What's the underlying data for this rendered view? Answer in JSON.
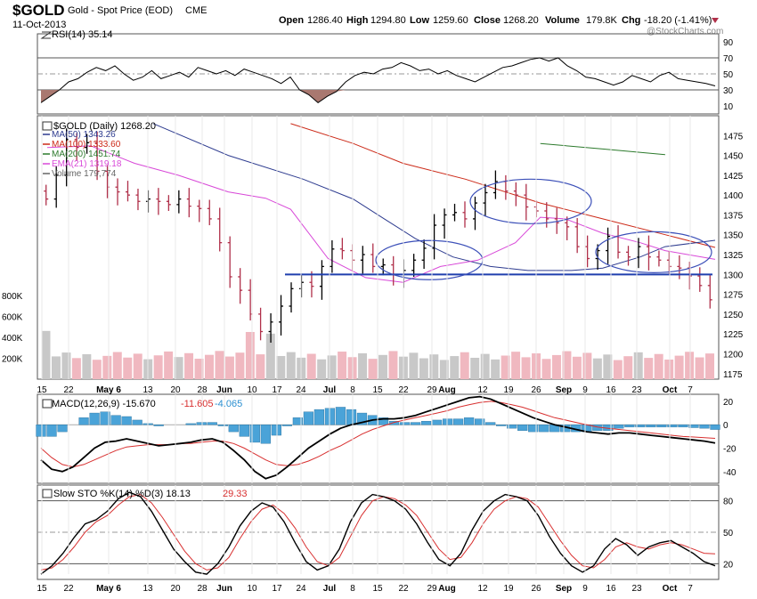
{
  "header": {
    "symbol": "$GOLD",
    "description": "Gold - Spot Price (EOD)",
    "exchange": "CME",
    "date": "11-Oct-2013",
    "open_label": "Open",
    "open": "1286.40",
    "high_label": "High",
    "high": "1294.80",
    "low_label": "Low",
    "low": "1259.60",
    "close_label": "Close",
    "close": "1268.20",
    "volume_label": "Volume",
    "volume": "179.8K",
    "chg_label": "Chg",
    "chg": "-18.20 (-1.41%)",
    "watermark": "@StockCharts.com"
  },
  "colors": {
    "price_bar": "#000000",
    "down_bar": "#b0304a",
    "ma50": "#2d3b8f",
    "ma100": "#cc2a18",
    "ma200": "#2c7a2c",
    "ema21": "#d848d8",
    "ellipse": "#3b4fb8",
    "support": "#1f3fae",
    "macd_hist": "#4aa3d8",
    "signal": "#d83030",
    "vol_up": "#c8c8c8",
    "vol_down": "#f0b8c0"
  },
  "chart_data": [
    {
      "type": "line",
      "panel": "RSI",
      "label": "RSI(14) 35.14",
      "ylim": [
        0,
        100
      ],
      "yticks": [
        10,
        30,
        50,
        70,
        90
      ],
      "guides": [
        30,
        50,
        70
      ],
      "values": [
        14,
        22,
        30,
        40,
        44,
        52,
        58,
        54,
        60,
        50,
        42,
        46,
        54,
        44,
        48,
        52,
        46,
        58,
        54,
        50,
        54,
        48,
        56,
        52,
        48,
        44,
        38,
        46,
        30,
        24,
        14,
        22,
        28,
        40,
        48,
        52,
        50,
        56,
        58,
        64,
        60,
        54,
        56,
        50,
        54,
        48,
        44,
        40,
        46,
        52,
        58,
        60,
        64,
        68,
        70,
        66,
        70,
        60,
        54,
        46,
        44,
        40,
        36,
        40,
        48,
        44,
        40,
        48,
        52,
        44,
        42,
        40,
        38,
        35
      ]
    },
    {
      "type": "ohlc",
      "panel": "Price",
      "label": "$GOLD (Daily) 1268.20",
      "ylim": [
        1168,
        1500
      ],
      "yticks": [
        1175,
        1200,
        1225,
        1250,
        1275,
        1300,
        1325,
        1350,
        1375,
        1400,
        1425,
        1450,
        1475
      ],
      "x_labels": [
        "15",
        "22",
        "May 6",
        "13",
        "20",
        "28",
        "Jun",
        "10",
        "17",
        "24",
        "Jul",
        "8",
        "15",
        "22",
        "29",
        "Aug",
        "12",
        "19",
        "26",
        "Sep",
        "9",
        "16",
        "23",
        "Oct",
        "7"
      ],
      "closes": [
        1395,
        1425,
        1470,
        1460,
        1466,
        1430,
        1410,
        1404,
        1400,
        1392,
        1395,
        1392,
        1388,
        1395,
        1386,
        1383,
        1370,
        1340,
        1297,
        1280,
        1250,
        1228,
        1240,
        1260,
        1282,
        1290,
        1285,
        1310,
        1332,
        1330,
        1318,
        1325,
        1310,
        1312,
        1300,
        1305,
        1318,
        1333,
        1362,
        1375,
        1378,
        1370,
        1390,
        1403,
        1417,
        1405,
        1400,
        1385,
        1380,
        1370,
        1365,
        1360,
        1335,
        1320,
        1330,
        1348,
        1328,
        1322,
        1335,
        1322,
        1318,
        1310,
        1308,
        1298,
        1286,
        1268
      ],
      "legend": [
        {
          "name": "MA(50) 1343.26",
          "value": 1343.26
        },
        {
          "name": "MA(100) 1333.60",
          "value": 1333.6
        },
        {
          "name": "MA(200) 1451.74",
          "value": 1451.74
        },
        {
          "name": "EMA(21) 1319.18",
          "value": 1319.18
        },
        {
          "name": "Volume 179,774",
          "value": 179774
        }
      ],
      "ma50": [
        [
          0.18,
          1490
        ],
        [
          0.3,
          1450
        ],
        [
          0.42,
          1420
        ],
        [
          0.5,
          1395
        ],
        [
          0.55,
          1370
        ],
        [
          0.6,
          1345
        ],
        [
          0.66,
          1322
        ],
        [
          0.72,
          1310
        ],
        [
          0.78,
          1305
        ],
        [
          0.85,
          1305
        ],
        [
          0.9,
          1308
        ],
        [
          0.96,
          1322
        ],
        [
          1.0,
          1335
        ],
        [
          1.08,
          1343
        ]
      ],
      "ma100": [
        [
          0.4,
          1490
        ],
        [
          0.5,
          1465
        ],
        [
          0.58,
          1440
        ],
        [
          0.68,
          1420
        ],
        [
          0.8,
          1390
        ],
        [
          0.9,
          1370
        ],
        [
          1.0,
          1350
        ],
        [
          1.08,
          1334
        ]
      ],
      "ma200": [
        [
          0.8,
          1465
        ],
        [
          0.9,
          1458
        ],
        [
          1.0,
          1451
        ]
      ],
      "ema21": [
        [
          0.01,
          1460
        ],
        [
          0.08,
          1462
        ],
        [
          0.15,
          1440
        ],
        [
          0.22,
          1425
        ],
        [
          0.3,
          1404
        ],
        [
          0.36,
          1396
        ],
        [
          0.4,
          1382
        ],
        [
          0.46,
          1320
        ],
        [
          0.52,
          1296
        ],
        [
          0.58,
          1290
        ],
        [
          0.64,
          1310
        ],
        [
          0.7,
          1318
        ],
        [
          0.76,
          1340
        ],
        [
          0.8,
          1372
        ],
        [
          0.84,
          1370
        ],
        [
          0.9,
          1352
        ],
        [
          0.96,
          1340
        ],
        [
          1.0,
          1330
        ],
        [
          1.08,
          1319
        ]
      ],
      "support": 1300,
      "volume_ylim": [
        0,
        900
      ],
      "volume_yticks": [
        {
          "v": 200,
          "label": "200K"
        },
        {
          "v": 400,
          "label": "400K"
        },
        {
          "v": 600,
          "label": "600K"
        },
        {
          "v": 800,
          "label": "800K"
        }
      ]
    },
    {
      "type": "bar+line",
      "panel": "MACD",
      "label_main": "MACD(12,26,9) -15.670",
      "label_signal": "-11.605",
      "label_hist": "-4.065",
      "ylim": [
        -50,
        26
      ],
      "yticks": [
        20,
        0,
        -20,
        -40
      ],
      "macd": [
        -30,
        -38,
        -40,
        -36,
        -28,
        -20,
        -15,
        -14,
        -12,
        -14,
        -16,
        -18,
        -17,
        -16,
        -15,
        -13,
        -12,
        -15,
        -22,
        -30,
        -40,
        -46,
        -43,
        -36,
        -28,
        -20,
        -14,
        -8,
        -3,
        0,
        2,
        4,
        5,
        5,
        6,
        8,
        11,
        14,
        17,
        20,
        23,
        24,
        22,
        18,
        14,
        10,
        6,
        3,
        0,
        -2,
        -4,
        -6,
        -7,
        -8,
        -7,
        -7,
        -8,
        -9,
        -10,
        -11,
        -12,
        -13,
        -14,
        -15.67
      ],
      "signal": [
        -20,
        -28,
        -34,
        -36,
        -34,
        -30,
        -26,
        -22,
        -19,
        -18,
        -17,
        -17,
        -17,
        -16,
        -16,
        -15,
        -14,
        -14,
        -16,
        -20,
        -25,
        -30,
        -34,
        -35,
        -34,
        -31,
        -27,
        -22,
        -18,
        -13,
        -8,
        -4,
        -1,
        2,
        4,
        6,
        8,
        10,
        12,
        15,
        17,
        19,
        20,
        19,
        17,
        15,
        12,
        9,
        6,
        4,
        2,
        0,
        -2,
        -3,
        -4,
        -5,
        -6,
        -7,
        -8,
        -9,
        -10,
        -10.5,
        -11,
        -11.605
      ]
    },
    {
      "type": "line",
      "panel": "Stochastic",
      "label_main": "Slow STO %K(14) %D(3) 18.13",
      "label_d": "29.33",
      "ylim": [
        5,
        95
      ],
      "yticks": [
        80,
        50,
        20
      ],
      "guides": [
        20,
        50,
        80
      ],
      "k": [
        10,
        18,
        30,
        45,
        58,
        62,
        70,
        82,
        88,
        84,
        70,
        52,
        34,
        22,
        12,
        10,
        20,
        36,
        56,
        70,
        78,
        74,
        60,
        40,
        22,
        14,
        18,
        34,
        60,
        78,
        86,
        84,
        80,
        72,
        58,
        40,
        24,
        18,
        30,
        52,
        70,
        80,
        86,
        84,
        80,
        66,
        46,
        30,
        18,
        12,
        18,
        34,
        44,
        38,
        28,
        36,
        40,
        42,
        36,
        30,
        22,
        18
      ],
      "d": [
        14,
        16,
        24,
        36,
        50,
        60,
        66,
        76,
        84,
        86,
        78,
        64,
        48,
        32,
        20,
        14,
        16,
        26,
        44,
        60,
        72,
        76,
        68,
        54,
        36,
        22,
        18,
        26,
        46,
        66,
        80,
        84,
        82,
        76,
        66,
        50,
        34,
        24,
        26,
        40,
        58,
        72,
        80,
        84,
        82,
        74,
        58,
        42,
        28,
        18,
        16,
        24,
        36,
        40,
        36,
        34,
        38,
        40,
        38,
        34,
        30,
        29.33
      ]
    }
  ]
}
